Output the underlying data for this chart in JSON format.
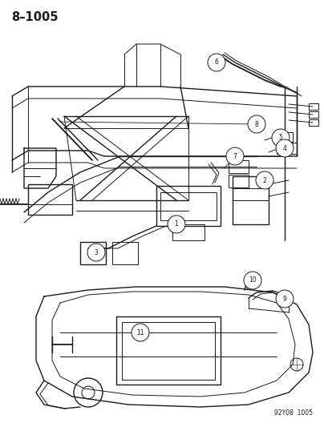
{
  "title": "8–1005",
  "footer": "92Y08  1005",
  "background_color": "#ffffff",
  "line_color": "#1a1a1a",
  "fig_width": 4.04,
  "fig_height": 5.33,
  "dpi": 100,
  "title_fontsize": 10.5,
  "footer_fontsize": 5.5,
  "callout_r": 0.018,
  "callout_fontsize": 5.5
}
